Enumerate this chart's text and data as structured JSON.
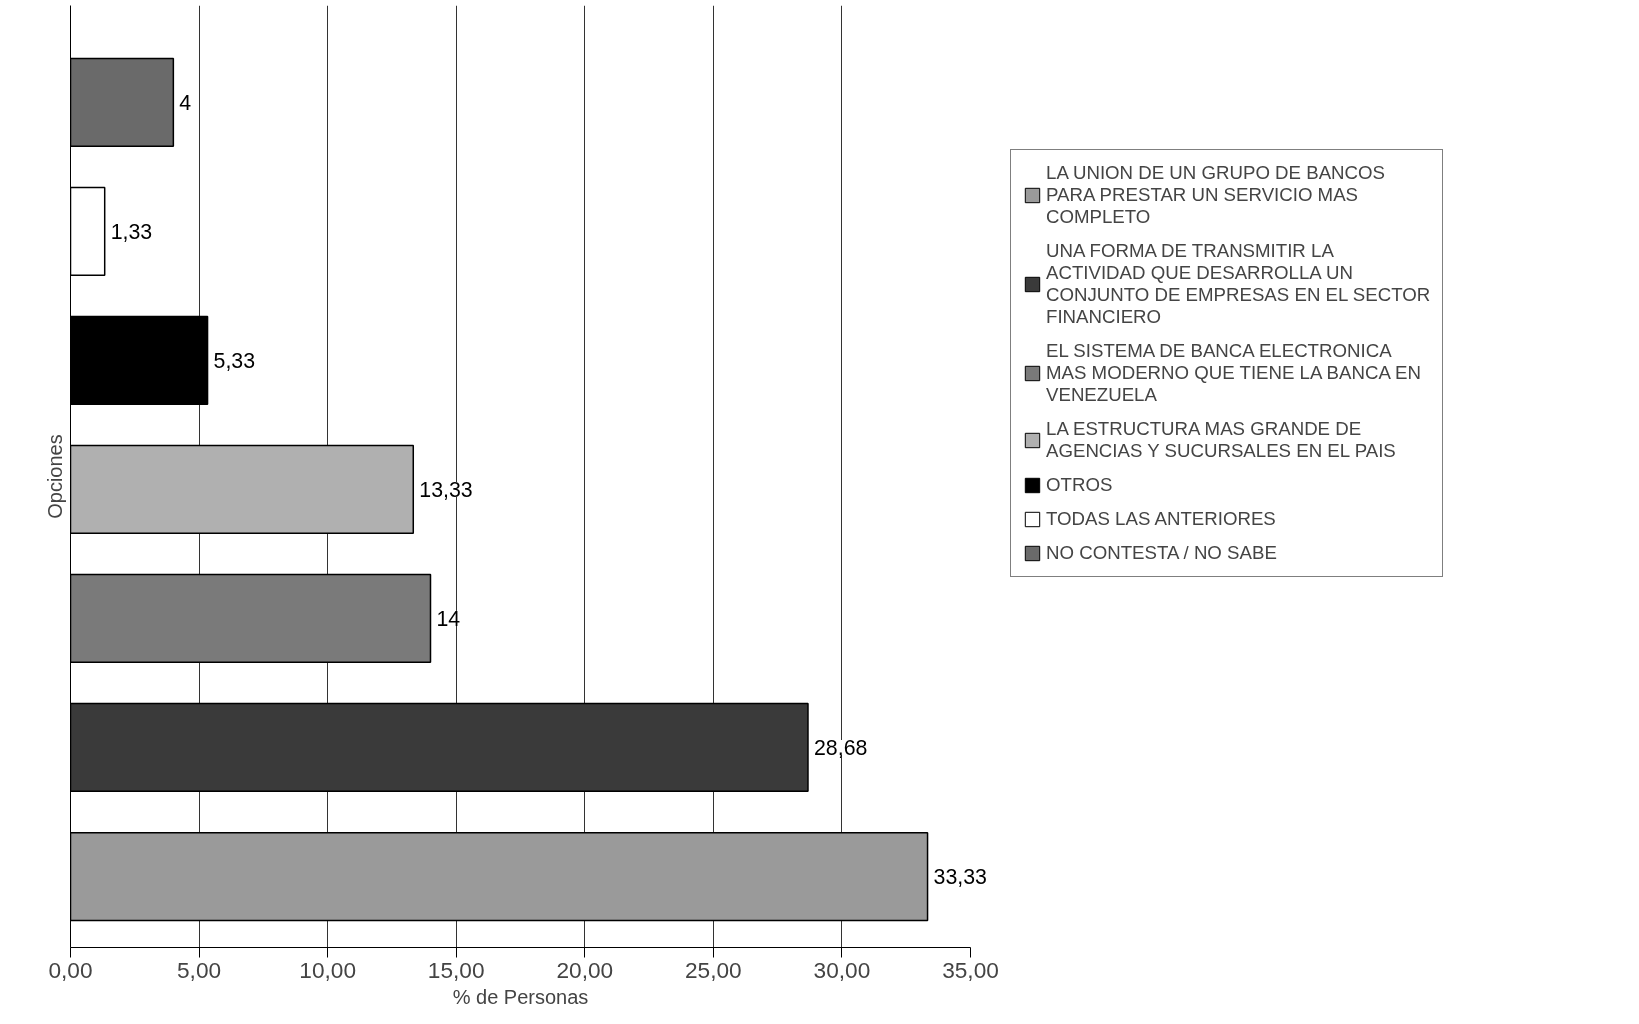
{
  "chart_data": {
    "type": "bar",
    "orientation": "horizontal",
    "xlabel": "% de Personas",
    "ylabel": "Opciones",
    "categories": [
      null,
      null,
      null,
      null,
      null,
      null,
      null
    ],
    "series": [
      {
        "name": "LA UNION DE UN GRUPO DE BANCOS PARA PRESTAR UN SERVICIO MAS COMPLETO",
        "color": "#9a9a9a",
        "values": [
          null,
          null,
          null,
          null,
          null,
          null,
          33.33
        ],
        "value_labels": [
          null,
          null,
          null,
          null,
          null,
          null,
          "33,33"
        ]
      },
      {
        "name": "UNA FORMA DE TRANSMITIR LA ACTIVIDAD QUE DESARROLLA UN CONJUNTO DE EMPRESAS EN EL SECTOR FINANCIERO",
        "color": "#3a3a3a",
        "values": [
          null,
          null,
          null,
          null,
          null,
          28.68,
          null
        ],
        "value_labels": [
          null,
          null,
          null,
          null,
          null,
          "28,68",
          null
        ]
      },
      {
        "name": "EL SISTEMA DE BANCA ELECTRONICA MAS MODERNO QUE TIENE LA BANCA EN VENEZUELA",
        "color": "#7a7a7a",
        "values": [
          null,
          null,
          null,
          null,
          14,
          null,
          null
        ],
        "value_labels": [
          null,
          null,
          null,
          null,
          "14",
          null,
          null
        ]
      },
      {
        "name": "LA ESTRUCTURA MAS GRANDE DE AGENCIAS Y SUCURSALES EN EL PAIS",
        "color": "#b0b0b0",
        "values": [
          null,
          null,
          null,
          13.33,
          null,
          null,
          null
        ],
        "value_labels": [
          null,
          null,
          null,
          "13,33",
          null,
          null,
          null
        ]
      },
      {
        "name": "OTROS",
        "color": "#000000",
        "values": [
          null,
          null,
          5.33,
          null,
          null,
          null,
          null
        ],
        "value_labels": [
          null,
          null,
          "5,33",
          null,
          null,
          null,
          null
        ]
      },
      {
        "name": "TODAS LAS ANTERIORES",
        "color": "#ffffff",
        "values": [
          null,
          1.33,
          null,
          null,
          null,
          null,
          null
        ],
        "value_labels": [
          null,
          "1,33",
          null,
          null,
          null,
          null,
          null
        ]
      },
      {
        "name": "NO CONTESTA / NO SABE",
        "color": "#6a6a6a",
        "values": [
          4,
          null,
          null,
          null,
          null,
          null,
          null
        ],
        "value_labels": [
          "4",
          null,
          null,
          null,
          null,
          null,
          null
        ]
      }
    ],
    "xlim": [
      0,
      35
    ],
    "xticks": [
      {
        "value": 0,
        "label": "0,00"
      },
      {
        "value": 5,
        "label": "5,00"
      },
      {
        "value": 10,
        "label": "10,00"
      },
      {
        "value": 15,
        "label": "15,00"
      },
      {
        "value": 20,
        "label": "20,00"
      },
      {
        "value": 25,
        "label": "25,00"
      },
      {
        "value": 30,
        "label": "30,00"
      },
      {
        "value": 35,
        "label": "35,00"
      }
    ],
    "grid": "x",
    "legend": "right"
  }
}
